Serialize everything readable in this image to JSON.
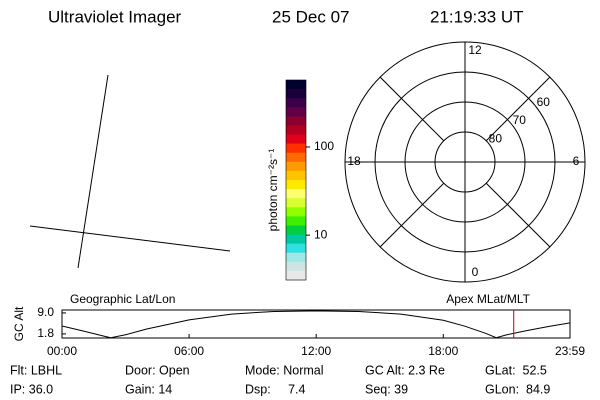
{
  "header": {
    "title": "Ultraviolet Imager",
    "date": "25 Dec 07",
    "time": "21:19:33 UT"
  },
  "chart_data": [
    {
      "type": "colorbar",
      "y_label": "photon cm⁻²s⁻¹",
      "log_scale": true,
      "ylim": [
        3.1,
        575
      ],
      "yticks": [
        10,
        100
      ],
      "colors": [
        "#000030",
        "#1a0038",
        "#3a0048",
        "#600048",
        "#8a0030",
        "#b40020",
        "#e00018",
        "#ff3000",
        "#ff6a00",
        "#ff9a00",
        "#ffc400",
        "#ffe800",
        "#ffff70",
        "#d8ff30",
        "#90ff00",
        "#40f000",
        "#00d040",
        "#00c8a0",
        "#30e0e0",
        "#9ee8e8",
        "#d0e4e4",
        "#e8e8e8"
      ]
    },
    {
      "type": "polar",
      "rlim": [
        90,
        50
      ],
      "rticks": [
        80,
        70,
        60
      ],
      "thetaticks": [
        12,
        18,
        6,
        0
      ]
    },
    {
      "type": "line",
      "title": "Geographic Lat/Lon",
      "subtitle": "Apex MLat/MLT",
      "y_label": "GC Alt",
      "x": [
        0,
        1,
        2,
        2.3,
        3,
        4,
        6,
        8,
        10,
        12,
        14,
        16,
        18,
        19,
        20,
        20.5,
        21,
        22,
        23,
        23.98
      ],
      "values": [
        4.5,
        2.8,
        1.0,
        0.5,
        1.5,
        3.5,
        6.6,
        8.6,
        9.5,
        9.7,
        9.5,
        8.6,
        6.5,
        4.5,
        2.0,
        0.5,
        1.5,
        3.0,
        4.4,
        5.6
      ],
      "color": "#000000",
      "marker_x": 21.326,
      "marker_color": "#d00000",
      "xlim": [
        0,
        23.983
      ],
      "ylim": [
        0.4,
        10.0
      ],
      "xticks": [
        {
          "value": 0,
          "label": "00:00"
        },
        {
          "value": 6,
          "label": "06:00"
        },
        {
          "value": 12,
          "label": "12:00"
        },
        {
          "value": 18,
          "label": "18:00"
        },
        {
          "value": 23.983,
          "label": "23:59"
        }
      ],
      "yticks": [
        {
          "value": 1.8,
          "label": "1.8"
        },
        {
          "value": 9.0,
          "label": "9.0"
        }
      ]
    }
  ],
  "footer": {
    "rows": [
      [
        "Flt: LBHL",
        "Door: Open",
        "Mode: Normal",
        "GC Alt: 2.3 Re",
        "GLat:  52.5"
      ],
      [
        "IP: 36.0",
        "Gain: 14",
        "Dsp:     7.4",
        "Seq: 39",
        "GLon:  84.9"
      ]
    ]
  }
}
